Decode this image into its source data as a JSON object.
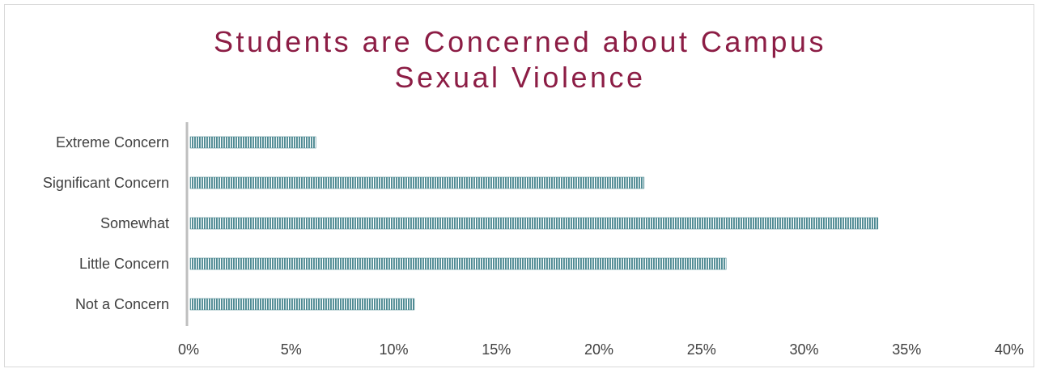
{
  "chart_data": {
    "type": "bar",
    "orientation": "horizontal",
    "title_lines": [
      "Students are Concerned about Campus",
      "Sexual Violence"
    ],
    "categories": [
      "Extreme Concern",
      "Significant Concern",
      "Somewhat",
      "Little Concern",
      "Not a Concern"
    ],
    "values": [
      6.2,
      22.2,
      33.6,
      26.2,
      11.0
    ],
    "value_unit": "%",
    "xlim": [
      0,
      40
    ],
    "x_ticks": [
      "0%",
      "5%",
      "10%",
      "15%",
      "20%",
      "25%",
      "30%",
      "35%",
      "40%"
    ],
    "grid": false,
    "legend": "none",
    "bar_color": "#4e8a93",
    "title_color": "#8c1d45"
  }
}
